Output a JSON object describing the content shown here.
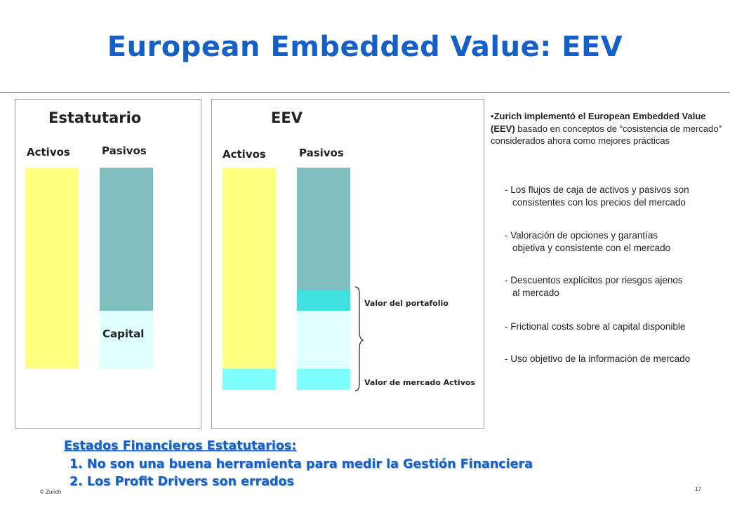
{
  "title": "European Embedded Value: EEV",
  "left_panel": {
    "heading": "Estatutario",
    "col_assets": "Activos",
    "col_liabilities": "Pasivos",
    "capital_label": "Capital"
  },
  "middle_panel": {
    "heading": "EEV",
    "col_assets": "Activos",
    "col_liabilities": "Pasivos",
    "annot_portfolio": "Valor del portafolio",
    "annot_market": "Valor de mercado Activos"
  },
  "sidebar": {
    "intro_bold_1": "Zurich implementó el European Embedded Value (EEV)",
    "intro_rest": " basado en conceptos de “cosistencia de mercado” considerados ahora como mejores prácticas",
    "items": [
      {
        "line1": "- Los flujos de caja  de activos y pasivos son",
        "line2": "consistentes con los precios del mercado"
      },
      {
        "line1": "- Valoración de opciones y garantías",
        "line2": "objetiva y consistente con el mercado"
      },
      {
        "line1": "- Descuentos explícitos  por riesgos ajenos",
        "line2": "al mercado"
      },
      {
        "line1": "- Frictional costs sobre al capital disponible",
        "line2": ""
      },
      {
        "line1": "- Uso objetivo de la información de mercado",
        "line2": ""
      }
    ]
  },
  "bottom": {
    "heading": "Estados Financieros Estatutarios:",
    "line1": "1. No son una buena herramienta para medir la Gestión Financiera",
    "line2": "2. Los Profit Drivers son errados"
  },
  "footer": {
    "left": "© Zurich",
    "page": "17"
  },
  "colors": {
    "title": "#1560c8",
    "assets_bar": "#ffff80",
    "liabilities_bar": "#80bfbf",
    "capital": "#e0ffff",
    "market_assets": "#80ffff",
    "portfolio_value": "#40e0e0"
  }
}
